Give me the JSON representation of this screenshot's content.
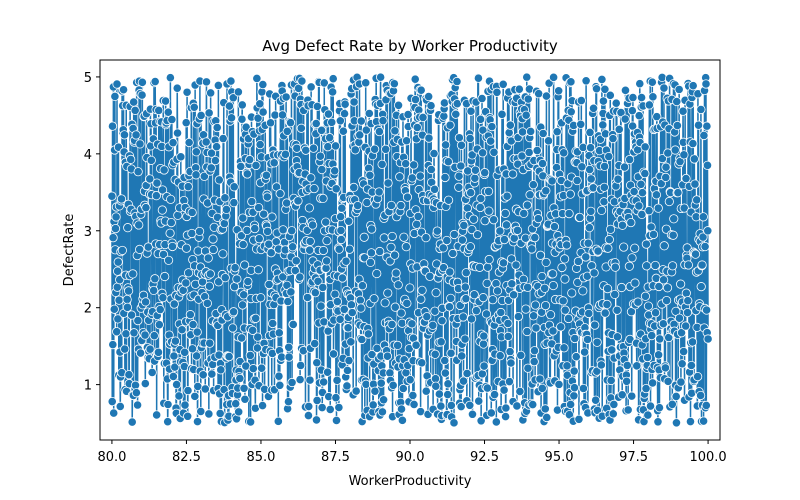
{
  "chart_data": {
    "type": "line",
    "title": "Avg Defect Rate by Worker Productivity",
    "xlabel": "WorkerProductivity",
    "ylabel": "DefectRate",
    "xlim": [
      79.6,
      100.4
    ],
    "ylim": [
      0.28,
      5.22
    ],
    "xticks": [
      80.0,
      82.5,
      85.0,
      87.5,
      90.0,
      92.5,
      95.0,
      97.5,
      100.0
    ],
    "xtick_labels": [
      "80.0",
      "82.5",
      "85.0",
      "87.5",
      "90.0",
      "92.5",
      "95.0",
      "97.5",
      "100.0"
    ],
    "yticks": [
      1,
      2,
      3,
      4,
      5
    ],
    "ytick_labels": [
      "1",
      "2",
      "3",
      "4",
      "5"
    ],
    "grid": false,
    "markers": true,
    "series": [
      {
        "x_range": [
          80.0,
          100.0
        ],
        "y_range": [
          0.5,
          5.0
        ],
        "point_count": 2000,
        "sample_x": [
          80.0,
          80.01,
          80.02,
          80.03,
          80.04,
          80.05,
          80.06,
          80.07,
          80.08,
          80.09
        ],
        "sample_y": [
          3.45,
          0.78,
          4.36,
          1.52,
          2.91,
          4.87,
          0.63,
          3.12,
          1.98,
          4.05
        ],
        "color": "#1f77b4",
        "marker_edge_color": "#ffffff"
      }
    ]
  }
}
